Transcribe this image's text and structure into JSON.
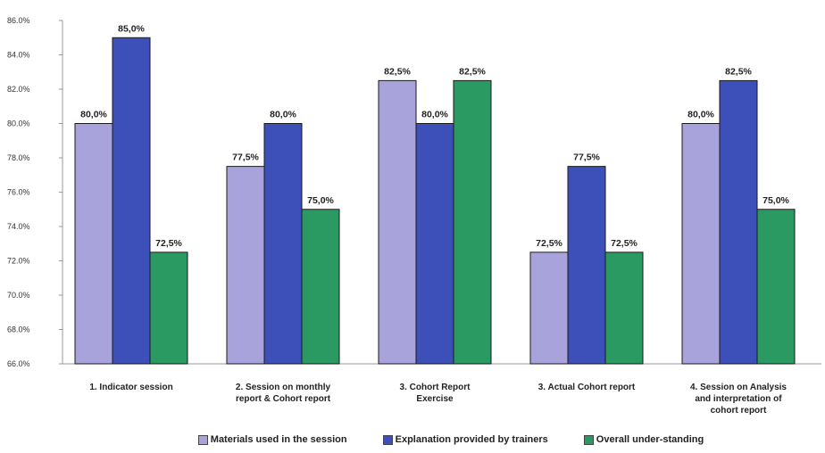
{
  "chart_data": {
    "type": "bar",
    "title": "",
    "xlabel": "",
    "ylabel": "",
    "ylim": [
      66,
      86
    ],
    "yticks": [
      "66.0%",
      "68.0%",
      "70.0%",
      "72.0%",
      "74.0%",
      "76.0%",
      "78.0%",
      "80.0%",
      "82.0%",
      "84.0%",
      "86.0%"
    ],
    "categories": [
      "1. Indicator session",
      "2. Session on monthly\nreport & Cohort report",
      "3. Cohort Report\nExercise",
      "3. Actual Cohort report",
      "4. Session on Analysis\nand interpretation of\ncohort report"
    ],
    "series": [
      {
        "name": "Materials used in the session",
        "color": "#a9a3dc",
        "values": [
          80.0,
          77.5,
          82.5,
          72.5,
          80.0
        ],
        "labels": [
          "80,0%",
          "77,5%",
          "82,5%",
          "72,5%",
          "80,0%"
        ]
      },
      {
        "name": "Explanation provided by trainers",
        "color": "#3d4fb8",
        "values": [
          85.0,
          80.0,
          80.0,
          77.5,
          82.5
        ],
        "labels": [
          "85,0%",
          "80,0%",
          "80,0%",
          "77,5%",
          "82,5%"
        ]
      },
      {
        "name": "Overall under-standing",
        "color": "#2a9a62",
        "values": [
          72.5,
          75.0,
          82.5,
          72.5,
          75.0
        ],
        "labels": [
          "72,5%",
          "75,0%",
          "82,5%",
          "72,5%",
          "75,0%"
        ]
      }
    ],
    "legend_position": "bottom",
    "grid": false
  }
}
